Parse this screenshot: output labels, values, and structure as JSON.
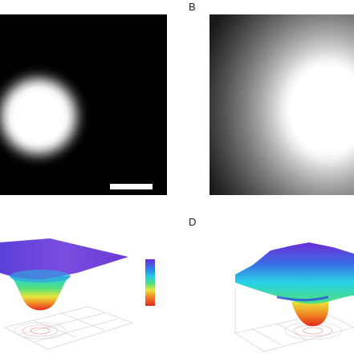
{
  "panels": {
    "b_label": "B",
    "d_label": "D"
  },
  "colors": {
    "colormap": [
      "#6d2bd6",
      "#2f7be8",
      "#26d1e6",
      "#4fe07c",
      "#e7e63a",
      "#f08a22",
      "#e4261f"
    ],
    "background": "#ffffff"
  }
}
